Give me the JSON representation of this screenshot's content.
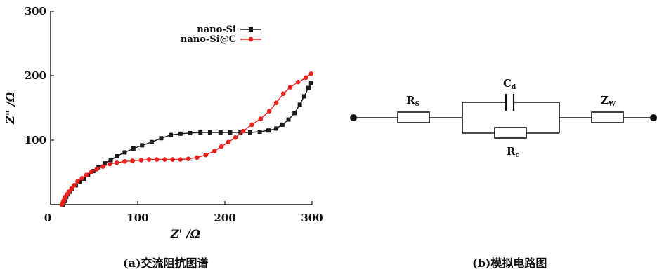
{
  "chart_data": {
    "type": "scatter",
    "xlabel": "Z' /Ω",
    "ylabel": "Z\" /Ω",
    "xlim": [
      0,
      300
    ],
    "ylim": [
      0,
      300
    ],
    "x_ticks": [
      "0",
      "100",
      "200",
      "300"
    ],
    "y_ticks": [
      "100",
      "200",
      "300"
    ],
    "grid": false,
    "legend_position": "top-right",
    "series": [
      {
        "name": "nano-Si",
        "color": "#1a1a1a",
        "marker": "square",
        "points": [
          [
            14,
            0
          ],
          [
            15,
            3
          ],
          [
            16,
            6
          ],
          [
            17,
            9
          ],
          [
            18,
            12
          ],
          [
            20,
            16
          ],
          [
            22,
            20
          ],
          [
            25,
            25
          ],
          [
            29,
            30
          ],
          [
            33,
            35
          ],
          [
            38,
            40
          ],
          [
            43,
            46
          ],
          [
            49,
            52
          ],
          [
            55,
            58
          ],
          [
            62,
            64
          ],
          [
            69,
            69
          ],
          [
            76,
            75
          ],
          [
            85,
            81
          ],
          [
            95,
            87
          ],
          [
            105,
            92
          ],
          [
            116,
            97
          ],
          [
            127,
            103
          ],
          [
            138,
            108
          ],
          [
            149,
            110
          ],
          [
            160,
            111
          ],
          [
            172,
            112
          ],
          [
            183,
            112
          ],
          [
            195,
            112
          ],
          [
            206,
            112
          ],
          [
            218,
            112
          ],
          [
            229,
            112
          ],
          [
            240,
            113
          ],
          [
            250,
            115
          ],
          [
            259,
            118
          ],
          [
            266,
            124
          ],
          [
            273,
            132
          ],
          [
            280,
            142
          ],
          [
            286,
            155
          ],
          [
            291,
            168
          ],
          [
            296,
            181
          ],
          [
            299,
            188
          ]
        ]
      },
      {
        "name": "nano-Si@C",
        "color": "#e8221c",
        "marker": "circle",
        "points": [
          [
            13,
            0
          ],
          [
            14,
            3
          ],
          [
            15,
            6
          ],
          [
            16,
            9
          ],
          [
            17,
            12
          ],
          [
            19,
            16
          ],
          [
            21,
            20
          ],
          [
            24,
            25
          ],
          [
            27,
            30
          ],
          [
            31,
            36
          ],
          [
            36,
            41
          ],
          [
            41,
            46
          ],
          [
            47,
            51
          ],
          [
            53,
            55
          ],
          [
            60,
            59
          ],
          [
            68,
            63
          ],
          [
            76,
            65
          ],
          [
            85,
            67
          ],
          [
            94,
            68
          ],
          [
            104,
            69
          ],
          [
            113,
            70
          ],
          [
            122,
            70
          ],
          [
            131,
            70
          ],
          [
            140,
            70
          ],
          [
            149,
            70
          ],
          [
            158,
            71
          ],
          [
            168,
            73
          ],
          [
            178,
            77
          ],
          [
            188,
            83
          ],
          [
            196,
            90
          ],
          [
            204,
            97
          ],
          [
            212,
            104
          ],
          [
            221,
            114
          ],
          [
            231,
            124
          ],
          [
            241,
            133
          ],
          [
            251,
            145
          ],
          [
            259,
            158
          ],
          [
            267,
            172
          ],
          [
            275,
            182
          ],
          [
            284,
            190
          ],
          [
            293,
            197
          ],
          [
            299,
            203
          ]
        ]
      }
    ]
  },
  "captions": {
    "a": "(a)交流阻抗图谱",
    "b": "(b)模拟电路图"
  },
  "circuit": {
    "rs_label": "R",
    "rs_sub": "S",
    "cd_label": "C",
    "cd_sub": "d",
    "rc_label": "R",
    "rc_sub": "c",
    "zw_label": "Z",
    "zw_sub": "W"
  }
}
